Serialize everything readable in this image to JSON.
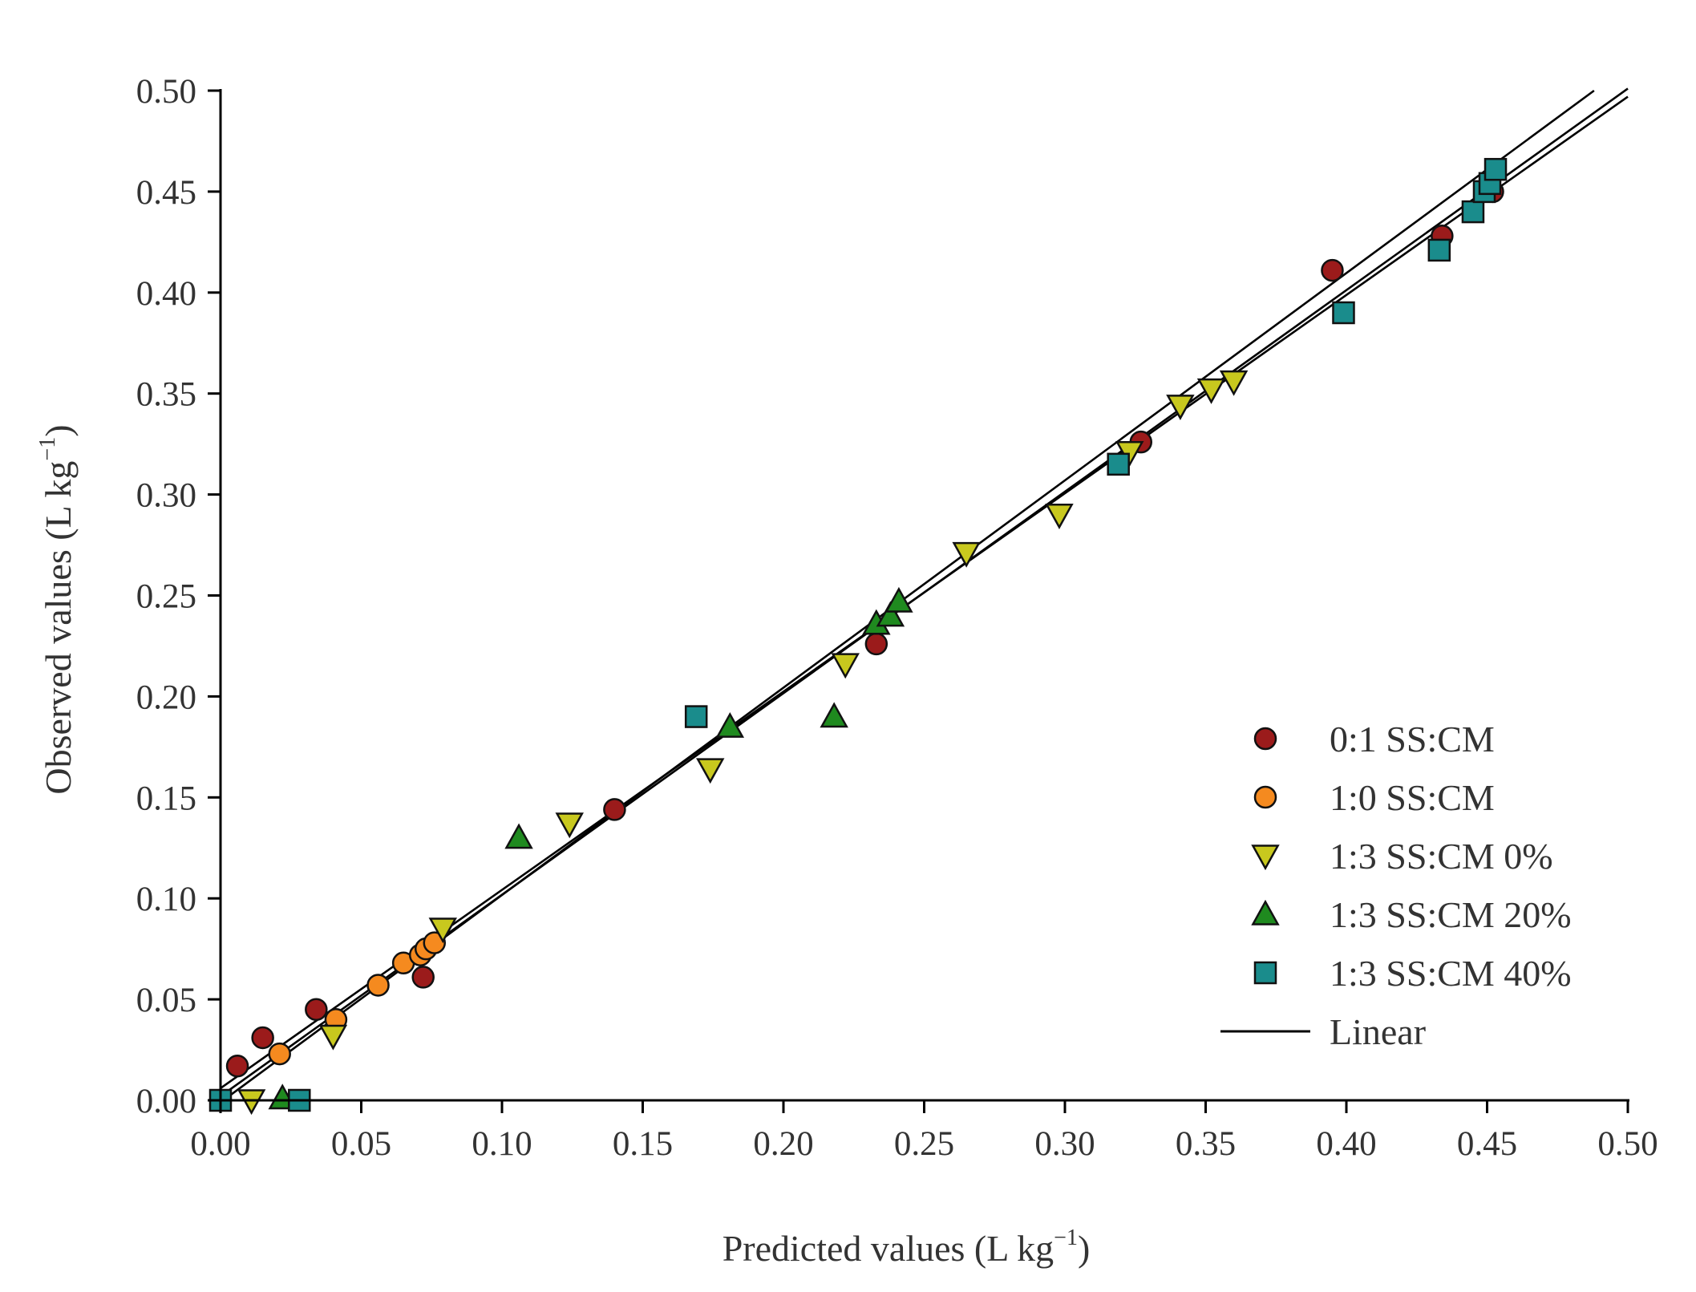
{
  "chart_data": {
    "type": "scatter",
    "xlabel": "Predicted values (L kg",
    "xlabel_sup": "−1",
    "xlabel_end": ")",
    "ylabel": "Observed values (L kg",
    "ylabel_sup": "−1",
    "ylabel_end": ")",
    "xlim": [
      0,
      0.5
    ],
    "ylim": [
      0,
      0.5
    ],
    "x_ticks": [
      "0.00",
      "0.05",
      "0.10",
      "0.15",
      "0.20",
      "0.25",
      "0.30",
      "0.35",
      "0.40",
      "0.45",
      "0.50"
    ],
    "y_ticks": [
      "0.00",
      "0.05",
      "0.10",
      "0.15",
      "0.20",
      "0.25",
      "0.30",
      "0.35",
      "0.40",
      "0.45",
      "0.50"
    ],
    "legend_position": "bottom-right",
    "series": [
      {
        "name": "0:1 SS:CM",
        "marker": "circle",
        "color": "#9b1b1b",
        "points": [
          [
            0.0,
            0.0
          ],
          [
            0.006,
            0.017
          ],
          [
            0.015,
            0.031
          ],
          [
            0.034,
            0.045
          ],
          [
            0.072,
            0.061
          ],
          [
            0.14,
            0.144
          ],
          [
            0.233,
            0.226
          ],
          [
            0.327,
            0.326
          ],
          [
            0.395,
            0.411
          ],
          [
            0.434,
            0.428
          ],
          [
            0.452,
            0.45
          ]
        ]
      },
      {
        "name": "1:0 SS:CM",
        "marker": "circle",
        "color": "#f58a1f",
        "points": [
          [
            0.021,
            0.023
          ],
          [
            0.041,
            0.04
          ],
          [
            0.056,
            0.057
          ],
          [
            0.065,
            0.068
          ],
          [
            0.071,
            0.072
          ],
          [
            0.073,
            0.075
          ],
          [
            0.076,
            0.078
          ]
        ]
      },
      {
        "name": "1:3 SS:CM 0%",
        "marker": "triangle-down",
        "color": "#c8c81e",
        "points": [
          [
            0.011,
            0.0
          ],
          [
            0.04,
            0.032
          ],
          [
            0.079,
            0.085
          ],
          [
            0.124,
            0.137
          ],
          [
            0.174,
            0.164
          ],
          [
            0.222,
            0.216
          ],
          [
            0.265,
            0.271
          ],
          [
            0.298,
            0.29
          ],
          [
            0.323,
            0.321
          ],
          [
            0.341,
            0.344
          ],
          [
            0.352,
            0.352
          ],
          [
            0.36,
            0.356
          ]
        ]
      },
      {
        "name": "1:3 SS:CM 20%",
        "marker": "triangle-up",
        "color": "#1f8a1f",
        "points": [
          [
            0.022,
            0.001
          ],
          [
            0.106,
            0.13
          ],
          [
            0.181,
            0.185
          ],
          [
            0.218,
            0.19
          ],
          [
            0.233,
            0.236
          ],
          [
            0.238,
            0.24
          ],
          [
            0.241,
            0.247
          ]
        ]
      },
      {
        "name": "1:3 SS:CM 40%",
        "marker": "square",
        "color": "#1a8c8c",
        "points": [
          [
            0.0,
            0.0
          ],
          [
            0.028,
            0.0
          ],
          [
            0.169,
            0.19
          ],
          [
            0.319,
            0.315
          ],
          [
            0.399,
            0.39
          ],
          [
            0.433,
            0.421
          ],
          [
            0.445,
            0.44
          ],
          [
            0.449,
            0.45
          ],
          [
            0.451,
            0.454
          ],
          [
            0.453,
            0.461
          ]
        ]
      }
    ],
    "fit_lines": [
      {
        "name": "Linear",
        "x": [
          0.0,
          0.5
        ],
        "y": [
          0.006,
          0.497
        ]
      },
      {
        "name": "Linear",
        "x": [
          0.0,
          0.488
        ],
        "y": [
          -0.001,
          0.5
        ]
      },
      {
        "name": "Linear",
        "x": [
          0.0,
          0.5
        ],
        "y": [
          0.002,
          0.501
        ]
      }
    ],
    "legend": [
      {
        "label": "0:1 SS:CM",
        "marker": "circle",
        "color": "#9b1b1b"
      },
      {
        "label": "1:0 SS:CM",
        "marker": "circle",
        "color": "#f58a1f"
      },
      {
        "label": "1:3 SS:CM 0%",
        "marker": "triangle-down",
        "color": "#c8c81e"
      },
      {
        "label": "1:3 SS:CM 20%",
        "marker": "triangle-up",
        "color": "#1f8a1f"
      },
      {
        "label": "1:3 SS:CM 40%",
        "marker": "square",
        "color": "#1a8c8c"
      },
      {
        "label": "Linear",
        "marker": "line",
        "color": "#000000"
      }
    ]
  }
}
